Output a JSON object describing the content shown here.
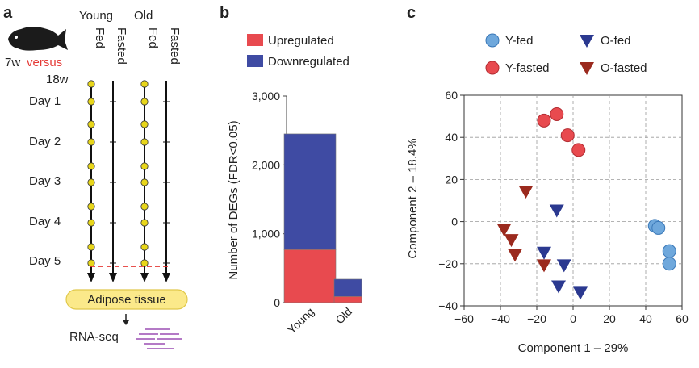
{
  "panel_a": {
    "letter": "a",
    "ages": {
      "young": "7w",
      "versus": "versus",
      "old": "18w"
    },
    "group_headers": [
      "Young",
      "Old"
    ],
    "conditions": [
      "Fed",
      "Fasted",
      "Fed",
      "Fasted"
    ],
    "days": [
      "Day 1",
      "Day 2",
      "Day 3",
      "Day 4",
      "Day 5"
    ],
    "tissue": "Adipose tissue",
    "assay": "RNA-seq",
    "colors": {
      "dot": "#e8d61a",
      "versus": "#e53935",
      "dashed": "#e53935",
      "tissue_fill": "#fbe98a",
      "seq_lines": "#9c4fb3"
    },
    "icons": [
      "killifish-icon",
      "arrow-down-icon",
      "sequencing-reads-icon"
    ]
  },
  "panel_b": {
    "letter": "b"
  },
  "panel_c": {
    "letter": "c"
  },
  "chart_data": [
    {
      "type": "bar",
      "stacked": true,
      "categories": [
        "Young",
        "Old"
      ],
      "series": [
        {
          "name": "Upregulated",
          "values": [
            770,
            90
          ],
          "color": "#e84a4f"
        },
        {
          "name": "Downregulated",
          "values": [
            1680,
            250
          ],
          "color": "#3f4ba3"
        }
      ],
      "ylabel": "Number of DEGs (FDR<0.05)",
      "ylim": [
        0,
        3000
      ],
      "yticks": [
        "0",
        "1,000",
        "2,000",
        "3,000"
      ],
      "legend": "top"
    },
    {
      "type": "scatter",
      "xlabel": "Component 1 – 29%",
      "ylabel": "Component 2 – 18.4%",
      "xlim": [
        -60,
        60
      ],
      "ylim": [
        -40,
        60
      ],
      "xticks": [
        "−60",
        "−40",
        "−20",
        "0",
        "20",
        "40",
        "60"
      ],
      "yticks": [
        "−40",
        "−20",
        "0",
        "20",
        "40",
        "60"
      ],
      "grid": true,
      "legend": "top",
      "series": [
        {
          "name": "Y-fed",
          "marker": "circle",
          "color": "#6fa8dc",
          "points": [
            [
              45,
              -2
            ],
            [
              47,
              -3
            ],
            [
              53,
              -14
            ],
            [
              53,
              -20
            ]
          ]
        },
        {
          "name": "Y-fasted",
          "marker": "circle",
          "color": "#e84a4f",
          "points": [
            [
              -16,
              48
            ],
            [
              -9,
              51
            ],
            [
              -3,
              41
            ],
            [
              3,
              34
            ]
          ]
        },
        {
          "name": "O-fed",
          "marker": "triangle-down",
          "color": "#2b3990",
          "points": [
            [
              -9,
              5
            ],
            [
              -16,
              -15
            ],
            [
              -5,
              -21
            ],
            [
              -8,
              -31
            ],
            [
              4,
              -34
            ]
          ]
        },
        {
          "name": "O-fasted",
          "marker": "triangle-down",
          "color": "#9b2a1e",
          "points": [
            [
              -26,
              14
            ],
            [
              -38,
              -4
            ],
            [
              -34,
              -9
            ],
            [
              -32,
              -16
            ],
            [
              -16,
              -21
            ]
          ]
        }
      ]
    }
  ]
}
